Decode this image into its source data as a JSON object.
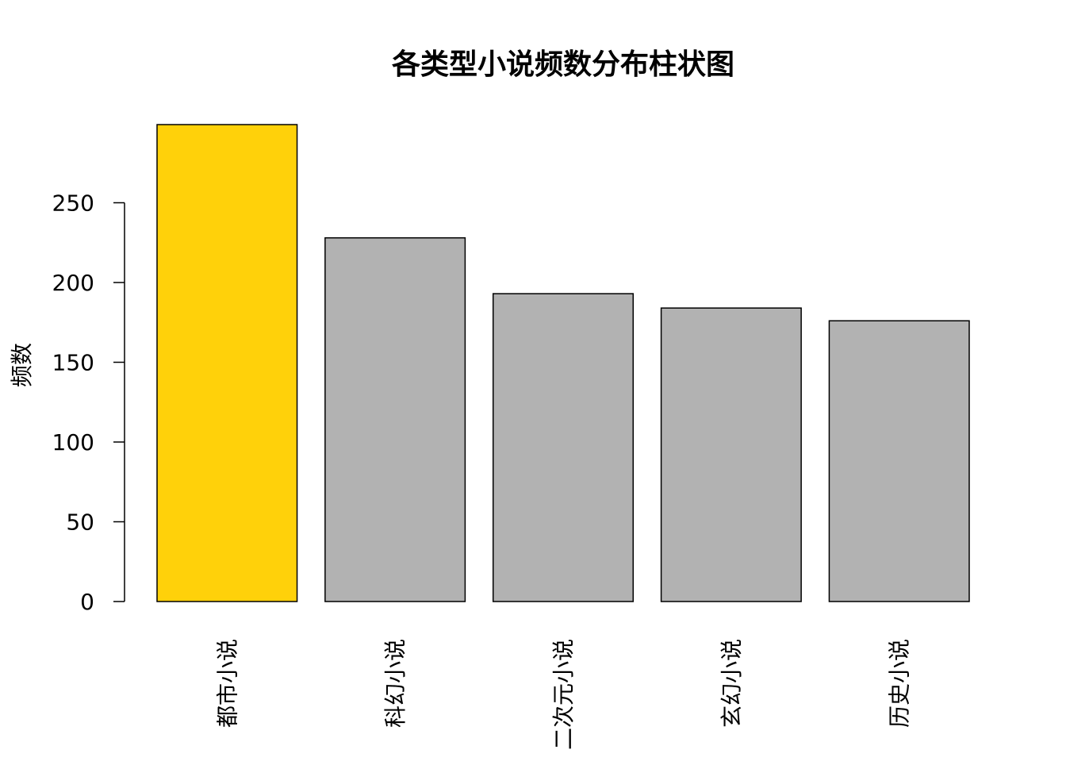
{
  "chart_data": {
    "type": "bar",
    "title": "各类型小说频数分布柱状图",
    "xlabel": "",
    "ylabel": "频数",
    "categories": [
      "都市小说",
      "科幻小说",
      "二次元小说",
      "玄幻小说",
      "历史小说"
    ],
    "values": [
      299,
      228,
      193,
      184,
      176
    ],
    "yticks": [
      0,
      50,
      100,
      150,
      200,
      250
    ],
    "ylim": [
      0,
      299
    ],
    "colors": [
      "#FFD10A",
      "#B2B2B2",
      "#B2B2B2",
      "#B2B2B2",
      "#B2B2B2"
    ],
    "grid": false,
    "legend": "none"
  }
}
